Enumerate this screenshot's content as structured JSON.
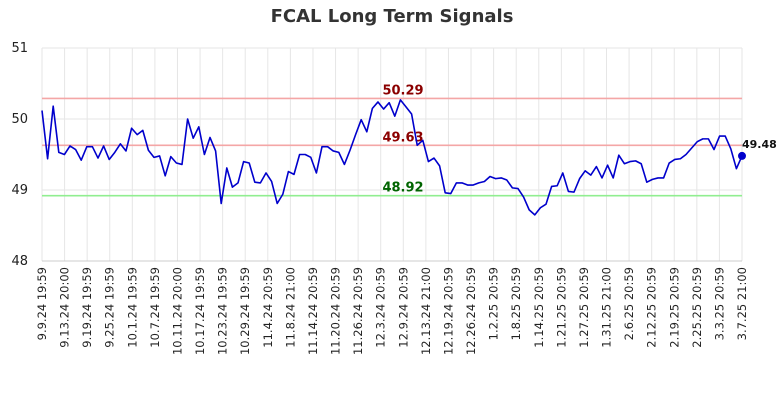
{
  "chart_data": {
    "type": "line",
    "title": "FCAL Long Term Signals",
    "xlabel": "",
    "ylabel": "",
    "ylim": [
      48,
      51
    ],
    "yticks": [
      "48",
      "49",
      "50",
      "51"
    ],
    "grid": true,
    "x_tick_labels": [
      "9.9.24 19:59",
      "9.13.24 20:00",
      "9.19.24 19:59",
      "9.25.24 19:59",
      "10.1.24 19:59",
      "10.7.24 19:59",
      "10.11.24 20:00",
      "10.17.24 19:59",
      "10.23.24 19:59",
      "10.29.24 19:59",
      "11.4.24 20:59",
      "11.8.24 21:00",
      "11.14.24 20:59",
      "11.20.24 20:59",
      "11.26.24 20:59",
      "12.3.24 20:59",
      "12.9.24 20:59",
      "12.13.24 21:00",
      "12.19.24 20:59",
      "12.26.24 20:59",
      "1.2.25 20:59",
      "1.8.25 20:59",
      "1.14.25 20:59",
      "1.21.25 20:59",
      "1.27.25 20:59",
      "1.31.25 21:00",
      "2.6.25 20:59",
      "2.12.25 20:59",
      "2.19.25 20:59",
      "2.25.25 20:59",
      "3.3.25 20:59",
      "3.7.25 21:00"
    ],
    "reference_lines": [
      {
        "label": "50.29",
        "value": 50.29,
        "color": "#f4a6a6",
        "label_color": "#8b0000"
      },
      {
        "label": "49.63",
        "value": 49.63,
        "color": "#f4a6a6",
        "label_color": "#8b0000"
      },
      {
        "label": "48.92",
        "value": 48.92,
        "color": "#90ee90",
        "label_color": "#006400"
      }
    ],
    "series": [
      {
        "color": "#0000cc",
        "values": [
          50.12,
          49.44,
          50.18,
          49.53,
          49.5,
          49.62,
          49.57,
          49.42,
          49.61,
          49.61,
          49.45,
          49.62,
          49.43,
          49.53,
          49.65,
          49.55,
          49.87,
          49.78,
          49.84,
          49.56,
          49.46,
          49.48,
          49.2,
          49.47,
          49.38,
          49.36,
          50.0,
          49.73,
          49.89,
          49.5,
          49.74,
          49.55,
          48.81,
          49.31,
          49.04,
          49.1,
          49.4,
          49.38,
          49.11,
          49.1,
          49.24,
          49.12,
          48.81,
          48.94,
          49.26,
          49.22,
          49.5,
          49.5,
          49.46,
          49.24,
          49.61,
          49.61,
          49.55,
          49.53,
          49.36,
          49.56,
          49.78,
          49.99,
          49.82,
          50.15,
          50.24,
          50.14,
          50.23,
          50.04,
          50.27,
          50.17,
          50.07,
          49.63,
          49.7,
          49.4,
          49.45,
          49.34,
          48.96,
          48.95,
          49.1,
          49.1,
          49.07,
          49.07,
          49.1,
          49.12,
          49.19,
          49.16,
          49.17,
          49.14,
          49.03,
          49.02,
          48.9,
          48.72,
          48.65,
          48.75,
          48.8,
          49.05,
          49.06,
          49.24,
          48.98,
          48.97,
          49.16,
          49.27,
          49.21,
          49.33,
          49.17,
          49.35,
          49.17,
          49.49,
          49.37,
          49.4,
          49.41,
          49.37,
          49.11,
          49.15,
          49.17,
          49.17,
          49.38,
          49.43,
          49.44,
          49.5,
          49.59,
          49.68,
          49.72,
          49.72,
          49.57,
          49.76,
          49.76,
          49.58,
          49.3,
          49.48
        ]
      }
    ],
    "last_value_label": "49.48"
  }
}
